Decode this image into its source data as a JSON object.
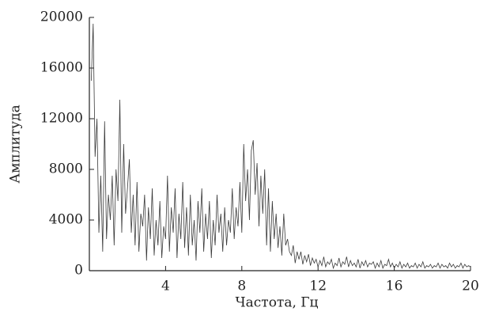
{
  "chart_data": {
    "type": "line",
    "xlabel": "Частота, Гц",
    "ylabel": "Амплитуда",
    "x": [
      0.1,
      0.2,
      0.3,
      0.4,
      0.5,
      0.6,
      0.7,
      0.8,
      0.9,
      1.0,
      1.1,
      1.2,
      1.3,
      1.4,
      1.5,
      1.6,
      1.7,
      1.8,
      1.9,
      2.0,
      2.1,
      2.2,
      2.3,
      2.4,
      2.5,
      2.6,
      2.7,
      2.8,
      2.9,
      3.0,
      3.1,
      3.2,
      3.3,
      3.4,
      3.5,
      3.6,
      3.7,
      3.8,
      3.9,
      4.0,
      4.1,
      4.2,
      4.3,
      4.4,
      4.5,
      4.6,
      4.7,
      4.8,
      4.9,
      5.0,
      5.1,
      5.2,
      5.3,
      5.4,
      5.5,
      5.6,
      5.7,
      5.8,
      5.9,
      6.0,
      6.1,
      6.2,
      6.3,
      6.4,
      6.5,
      6.6,
      6.7,
      6.8,
      6.9,
      7.0,
      7.1,
      7.2,
      7.3,
      7.4,
      7.5,
      7.6,
      7.7,
      7.8,
      7.9,
      8.0,
      8.1,
      8.2,
      8.3,
      8.4,
      8.5,
      8.6,
      8.7,
      8.8,
      8.9,
      9.0,
      9.1,
      9.2,
      9.3,
      9.4,
      9.5,
      9.6,
      9.7,
      9.8,
      9.9,
      10.0,
      10.1,
      10.2,
      10.3,
      10.4,
      10.5,
      10.6,
      10.7,
      10.8,
      10.9,
      11.0,
      11.1,
      11.2,
      11.3,
      11.4,
      11.5,
      11.6,
      11.7,
      11.8,
      11.9,
      12.0,
      12.1,
      12.2,
      12.3,
      12.4,
      12.5,
      12.6,
      12.7,
      12.8,
      12.9,
      13.0,
      13.1,
      13.2,
      13.3,
      13.4,
      13.5,
      13.6,
      13.7,
      13.8,
      13.9,
      14.0,
      14.1,
      14.2,
      14.3,
      14.4,
      14.5,
      14.6,
      14.7,
      14.8,
      14.9,
      15.0,
      15.1,
      15.2,
      15.3,
      15.4,
      15.5,
      15.6,
      15.7,
      15.8,
      15.9,
      16.0,
      16.1,
      16.2,
      16.3,
      16.4,
      16.5,
      16.6,
      16.7,
      16.8,
      16.9,
      17.0,
      17.1,
      17.2,
      17.3,
      17.4,
      17.5,
      17.6,
      17.7,
      17.8,
      17.9,
      18.0,
      18.1,
      18.2,
      18.3,
      18.4,
      18.5,
      18.6,
      18.7,
      18.8,
      18.9,
      19.0,
      19.1,
      19.2,
      19.3,
      19.4,
      19.5,
      19.6,
      19.7,
      19.8,
      19.9,
      20.0
    ],
    "series": [
      {
        "color": "#3a3a3a",
        "values": [
          15000,
          19500,
          9000,
          12000,
          3000,
          7500,
          1500,
          11800,
          2500,
          6000,
          4000,
          7500,
          2000,
          8000,
          5500,
          13500,
          3000,
          10000,
          4500,
          6500,
          8800,
          3000,
          6000,
          2000,
          7000,
          1500,
          4500,
          3500,
          6000,
          800,
          5000,
          2500,
          6500,
          1200,
          4000,
          2000,
          5500,
          1000,
          3500,
          2500,
          7500,
          1500,
          5000,
          3000,
          6500,
          1000,
          4500,
          2500,
          7000,
          1800,
          5000,
          1200,
          6000,
          2000,
          4000,
          800,
          5500,
          3000,
          6500,
          1500,
          4500,
          2500,
          5500,
          1000,
          4000,
          2000,
          6000,
          3000,
          4500,
          1500,
          5000,
          2000,
          4000,
          3000,
          6500,
          2500,
          5000,
          3500,
          7000,
          3000,
          10000,
          5500,
          8000,
          4000,
          9500,
          10300,
          6000,
          8500,
          3500,
          7500,
          4500,
          8000,
          2000,
          6500,
          1500,
          5500,
          2500,
          4500,
          1800,
          3500,
          1200,
          4500,
          2000,
          2500,
          1500,
          1200,
          2000,
          600,
          1500,
          900,
          1500,
          500,
          1200,
          700,
          1300,
          400,
          1000,
          600,
          900,
          300,
          800,
          400,
          1100,
          300,
          700,
          500,
          900,
          200,
          600,
          400,
          1000,
          300,
          700,
          500,
          1100,
          300,
          800,
          400,
          600,
          300,
          900,
          200,
          700,
          400,
          800,
          300,
          600,
          500,
          700,
          200,
          600,
          300,
          800,
          200,
          500,
          400,
          900,
          300,
          600,
          200,
          500,
          300,
          700,
          200,
          500,
          300,
          600,
          200,
          400,
          300,
          600,
          200,
          500,
          300,
          700,
          200,
          400,
          300,
          500,
          200,
          400,
          300,
          600,
          200,
          500,
          300,
          400,
          200,
          600,
          300,
          500,
          200,
          400,
          300,
          600,
          200,
          500,
          300,
          400,
          300
        ]
      }
    ],
    "xlim": [
      0,
      20
    ],
    "ylim": [
      0,
      20000
    ],
    "xticks": [
      4,
      8,
      12,
      16,
      20
    ],
    "yticks": [
      0,
      4000,
      8000,
      12000,
      16000,
      20000
    ]
  }
}
